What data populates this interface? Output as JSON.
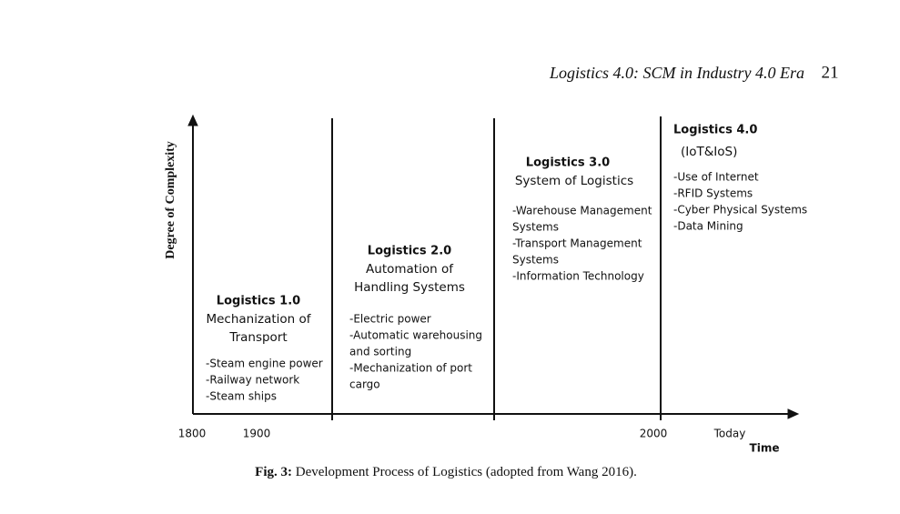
{
  "header": {
    "title": "Logistics 4.0: SCM in Industry 4.0 Era",
    "page": "21"
  },
  "figure": {
    "y_axis_label": "Degree of Complexity",
    "x_axis_label": "Time",
    "time_labels": [
      "1800",
      "1900",
      "2000",
      "Today"
    ],
    "stages": [
      {
        "title": "Logistics 1.0",
        "subtitle": [
          "Mechanization of",
          "Transport"
        ],
        "items": [
          "-Steam engine power",
          "-Railway network",
          "-Steam ships"
        ]
      },
      {
        "title": "Logistics 2.0",
        "subtitle": [
          "Automation of",
          "Handling Systems"
        ],
        "items": [
          "-Electric power",
          "-Automatic warehousing",
          "and sorting",
          "-Mechanization of port",
          "cargo"
        ]
      },
      {
        "title": "Logistics 3.0",
        "subtitle": [
          "System of Logistics"
        ],
        "items": [
          "-Warehouse Management",
          " Systems",
          "-Transport Management",
          " Systems",
          "-Information Technology"
        ]
      },
      {
        "title": "Logistics 4.0",
        "subtitle": [
          "(IoT&IoS)"
        ],
        "items": [
          "-Use of Internet",
          "-RFID Systems",
          "-Cyber Physical Systems",
          "-Data Mining"
        ]
      }
    ],
    "caption": {
      "label": "Fig. 3:",
      "text": "Development Process of Logistics (adopted from Wang 2016)."
    }
  }
}
